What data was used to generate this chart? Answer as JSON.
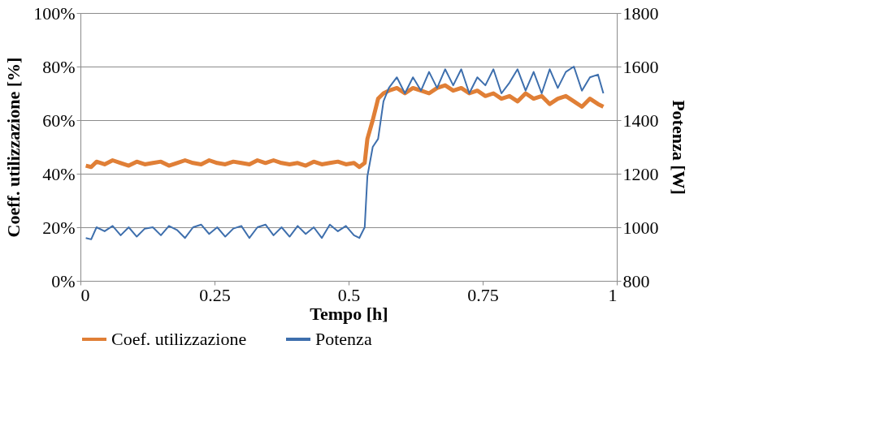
{
  "chart_data": {
    "type": "line",
    "xlabel": "Tempo [h]",
    "ylabel": "Coeff. utilizzazione [%]",
    "y2label": "Potenza [W]",
    "x": [
      0.01,
      0.02,
      0.03,
      0.045,
      0.06,
      0.075,
      0.09,
      0.105,
      0.12,
      0.135,
      0.15,
      0.165,
      0.18,
      0.195,
      0.21,
      0.225,
      0.24,
      0.255,
      0.27,
      0.285,
      0.3,
      0.315,
      0.33,
      0.345,
      0.36,
      0.375,
      0.39,
      0.405,
      0.42,
      0.435,
      0.45,
      0.465,
      0.48,
      0.495,
      0.51,
      0.52,
      0.53,
      0.535,
      0.545,
      0.555,
      0.565,
      0.575,
      0.59,
      0.605,
      0.62,
      0.635,
      0.65,
      0.665,
      0.68,
      0.695,
      0.71,
      0.725,
      0.74,
      0.755,
      0.77,
      0.785,
      0.8,
      0.815,
      0.83,
      0.845,
      0.86,
      0.875,
      0.89,
      0.905,
      0.92,
      0.935,
      0.95,
      0.965,
      0.975
    ],
    "series": [
      {
        "name": "Coef. utilizzazione",
        "color": "#e07f36",
        "values": [
          43,
          42.5,
          44.5,
          43.5,
          45,
          44,
          43,
          44.5,
          43.5,
          44,
          44.5,
          43,
          44,
          45,
          44,
          43.5,
          45,
          44,
          43.5,
          44.5,
          44,
          43.5,
          45,
          44,
          45,
          44,
          43.5,
          44,
          43,
          44.5,
          43.5,
          44,
          44.5,
          43.5,
          44,
          42.5,
          44,
          53,
          60,
          68,
          70,
          71,
          72,
          70,
          72,
          71,
          70,
          72,
          73,
          71,
          72,
          70,
          71,
          69,
          70,
          68,
          69,
          67,
          70,
          68,
          69,
          66,
          68,
          69,
          67,
          65,
          68,
          66,
          65
        ]
      },
      {
        "name": "Potenza",
        "color": "#3e6fad",
        "axis": "y2",
        "values": [
          960,
          955,
          1000,
          985,
          1005,
          970,
          1000,
          965,
          995,
          1000,
          970,
          1005,
          990,
          960,
          1000,
          1010,
          975,
          1000,
          965,
          995,
          1005,
          960,
          1000,
          1010,
          970,
          1000,
          965,
          1005,
          975,
          1000,
          960,
          1010,
          985,
          1005,
          970,
          960,
          1000,
          1190,
          1300,
          1330,
          1470,
          1520,
          1560,
          1500,
          1560,
          1510,
          1580,
          1520,
          1590,
          1530,
          1590,
          1500,
          1560,
          1530,
          1590,
          1500,
          1540,
          1590,
          1510,
          1580,
          1500,
          1590,
          1520,
          1580,
          1600,
          1510,
          1560,
          1570,
          1500
        ]
      }
    ],
    "xlim": [
      0,
      1
    ],
    "xticks": [
      0,
      0.25,
      0.5,
      0.75,
      1
    ],
    "ylim": [
      0,
      100
    ],
    "yticks": [
      {
        "value": 0,
        "label": "0%"
      },
      {
        "value": 20,
        "label": "20%"
      },
      {
        "value": 40,
        "label": "40%"
      },
      {
        "value": 60,
        "label": "60%"
      },
      {
        "value": 80,
        "label": "80%"
      },
      {
        "value": 100,
        "label": "100%"
      }
    ],
    "y2lim": [
      800,
      1800
    ],
    "y2ticks": [
      800,
      1000,
      1200,
      1400,
      1600,
      1800
    ],
    "grid": "y",
    "legend": "bottom",
    "marker": "none",
    "line_style": "solid"
  }
}
